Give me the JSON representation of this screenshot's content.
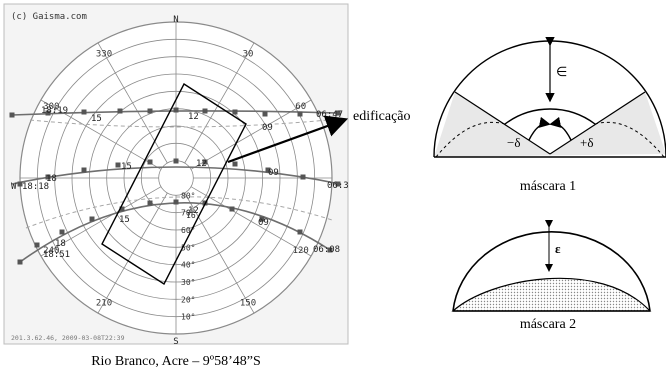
{
  "sunpath": {
    "copyright": "(c) Gaisma.com",
    "footer_id": "201.3.62.46, 2009-03-08T22:39",
    "caption": "Rio Branco, Acre – 9º58’48”S",
    "cardinals": {
      "n": "N",
      "s": "S",
      "w": "W"
    },
    "azimuth_labels": [
      {
        "az": 330,
        "text": "330"
      },
      {
        "az": 30,
        "text": "30"
      },
      {
        "az": 300,
        "text": "300"
      },
      {
        "az": 60,
        "text": "60"
      },
      {
        "az": 240,
        "text": "240"
      },
      {
        "az": 120,
        "text": "120"
      },
      {
        "az": 210,
        "text": "210"
      },
      {
        "az": 150,
        "text": "150"
      }
    ],
    "altitude_labels": [
      "80°",
      "70°",
      "60°",
      "50°",
      "40°",
      "30°",
      "20°",
      "10°"
    ],
    "hour_labels": {
      "summer": [
        "18:19",
        "15",
        "12",
        "09",
        "06:47"
      ],
      "equinox": [
        "18:18",
        "18",
        "15",
        "12",
        "09",
        "06:3"
      ],
      "winter": [
        "18",
        "18:51",
        "15",
        "12",
        "09",
        "06:08"
      ]
    },
    "inner_hour_label": "16",
    "building_label": "edificação"
  },
  "mask1": {
    "caption": "máscara 1",
    "epsilon": "∈",
    "minus_delta": "−δ",
    "plus_delta": "+δ"
  },
  "mask2": {
    "caption": "máscara 2",
    "epsilon": "ε"
  },
  "colors": {
    "grid": "#8a8a8a",
    "path": "#6e6e6e",
    "marker": "#555555",
    "shade": "#e8e8e8",
    "ink": "#000000"
  }
}
